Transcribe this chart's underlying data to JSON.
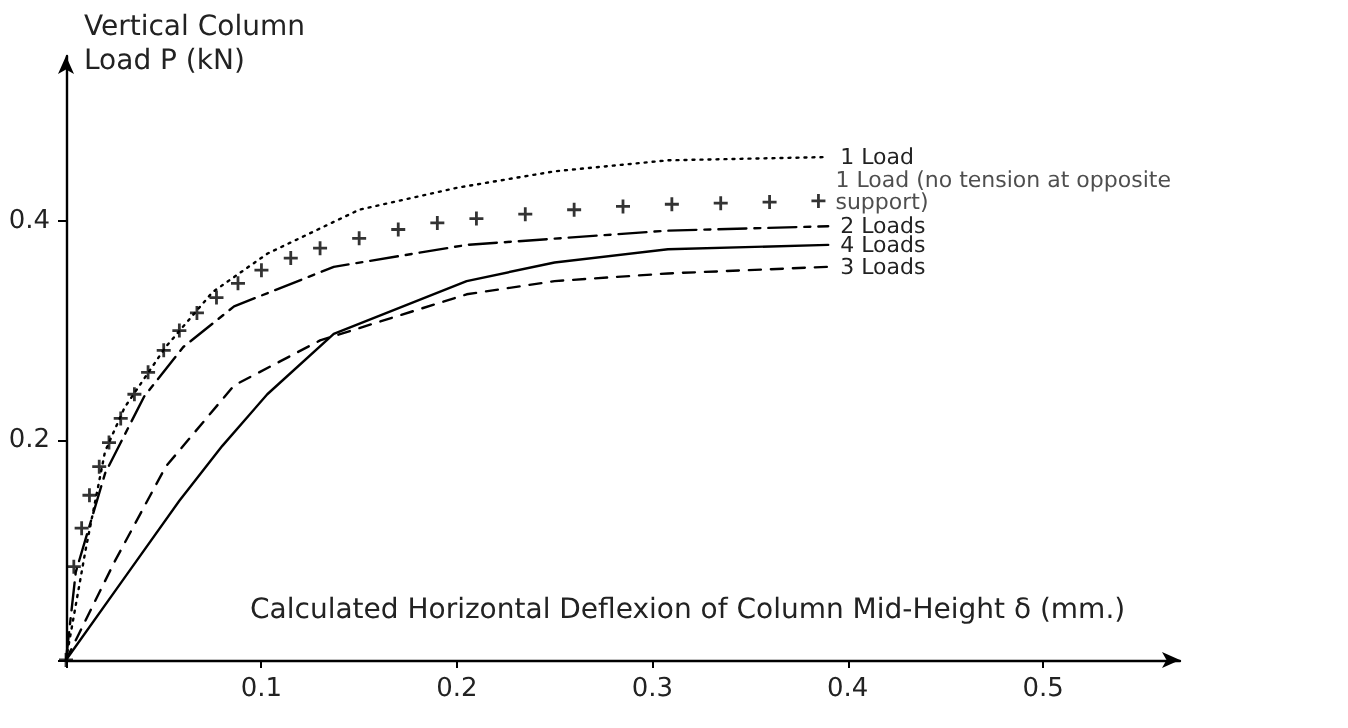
{
  "chart_data": {
    "type": "line",
    "xlabel": "Calculated Horizontal Deflexion of Column Mid-Height δ (mm.)",
    "ylabel": "Vertical Column Load P (kN)",
    "xlim": [
      0,
      0.57
    ],
    "xticks": [
      {
        "value": 0,
        "label": null
      },
      0.1,
      0.2,
      0.3,
      0.4,
      0.5
    ],
    "ylim": [
      0,
      0.55
    ],
    "yticks": [
      {
        "value": 0,
        "label": null
      },
      0.2,
      0.4
    ],
    "grid": false,
    "legend": false,
    "series": [
      {
        "name": "1 Load",
        "color": "#000000",
        "line_style": "dotted",
        "marker": "none",
        "x": [
          0,
          0.01,
          0.02,
          0.03,
          0.051,
          0.075,
          0.103,
          0.15,
          0.2,
          0.25,
          0.308,
          0.39
        ],
        "values": [
          0,
          0.1,
          0.19,
          0.23,
          0.285,
          0.335,
          0.37,
          0.41,
          0.43,
          0.445,
          0.455,
          0.458
        ]
      },
      {
        "name": "1 Load (no tension at opposite support)",
        "type": "scatter",
        "color": "#000000",
        "marker": "cross",
        "x": [
          0,
          0.004,
          0.008,
          0.012,
          0.017,
          0.022,
          0.028,
          0.035,
          0.042,
          0.05,
          0.058,
          0.067,
          0.077,
          0.088,
          0.1,
          0.115,
          0.13,
          0.15,
          0.17,
          0.19,
          0.21,
          0.235,
          0.26,
          0.285,
          0.31,
          0.335,
          0.36,
          0.385
        ],
        "values": [
          0,
          0.085,
          0.12,
          0.15,
          0.176,
          0.198,
          0.22,
          0.242,
          0.262,
          0.282,
          0.3,
          0.316,
          0.33,
          0.343,
          0.355,
          0.366,
          0.375,
          0.384,
          0.392,
          0.398,
          0.402,
          0.406,
          0.41,
          0.413,
          0.415,
          0.416,
          0.417,
          0.418
        ]
      },
      {
        "name": "2 Loads",
        "color": "#000000",
        "line_style": "dashdot",
        "marker": "none",
        "x": [
          0,
          0.005,
          0.02,
          0.04,
          0.06,
          0.086,
          0.137,
          0.205,
          0.308,
          0.39
        ],
        "values": [
          0,
          0.08,
          0.17,
          0.24,
          0.285,
          0.322,
          0.358,
          0.378,
          0.391,
          0.395
        ]
      },
      {
        "name": "4 Loads",
        "color": "#000000",
        "line_style": "solid",
        "marker": "none",
        "x": [
          0,
          0.03,
          0.058,
          0.08,
          0.103,
          0.137,
          0.205,
          0.25,
          0.308,
          0.39
        ],
        "values": [
          0,
          0.075,
          0.145,
          0.195,
          0.242,
          0.297,
          0.345,
          0.362,
          0.374,
          0.378
        ]
      },
      {
        "name": "3 Loads",
        "color": "#000000",
        "line_style": "dashed",
        "marker": "none",
        "x": [
          0,
          0.025,
          0.051,
          0.086,
          0.13,
          0.205,
          0.25,
          0.308,
          0.39
        ],
        "values": [
          0,
          0.09,
          0.176,
          0.25,
          0.291,
          0.333,
          0.345,
          0.352,
          0.358
        ]
      }
    ]
  }
}
